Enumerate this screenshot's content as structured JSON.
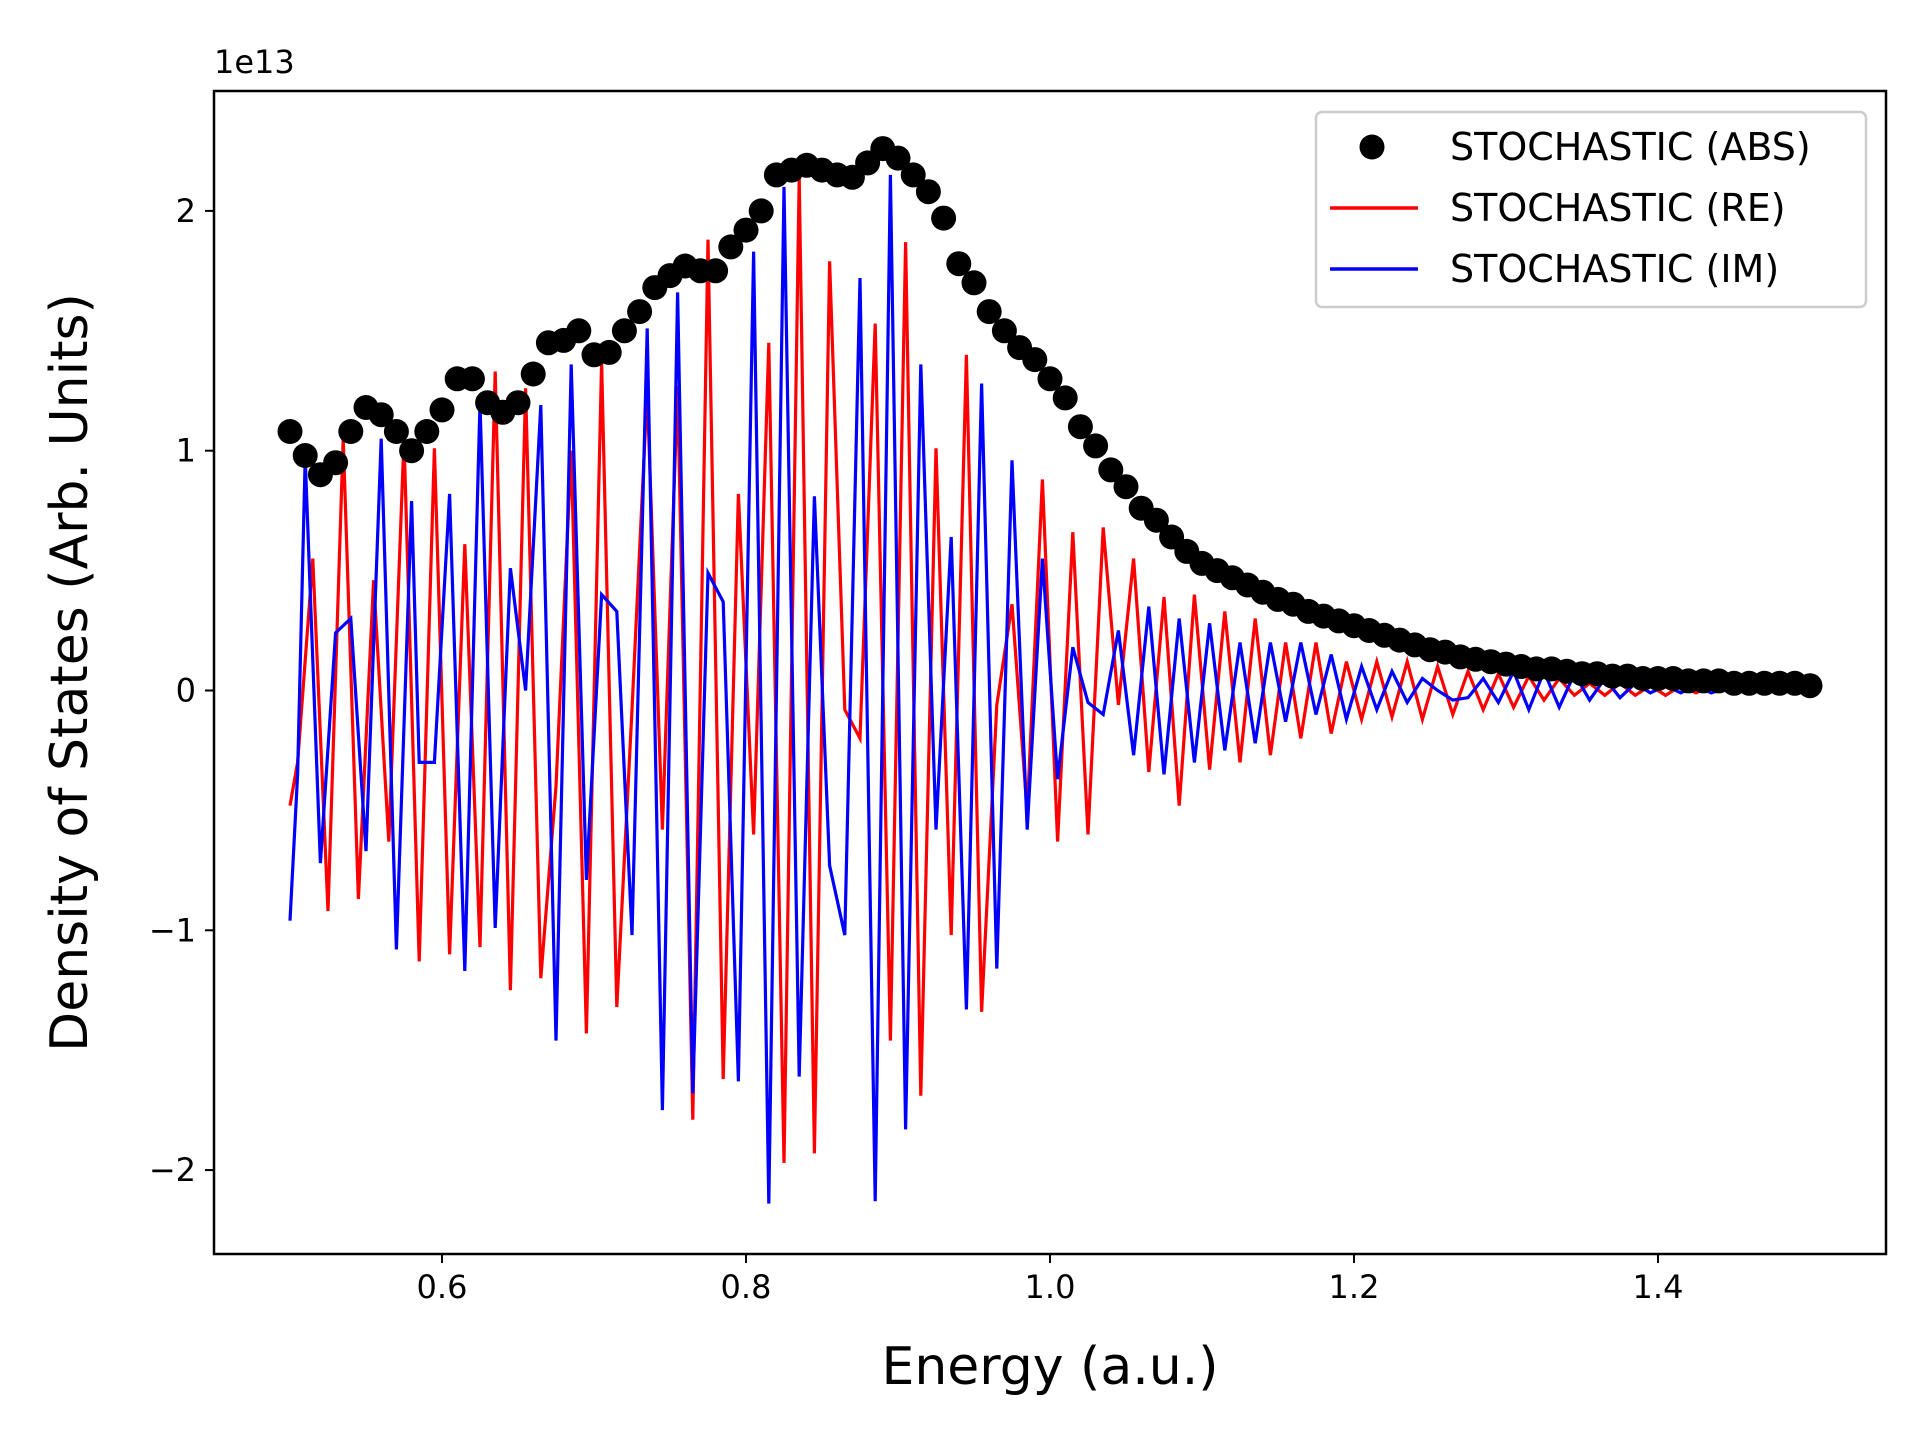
{
  "chart_data": {
    "type": "line",
    "xlabel": "Energy (a.u.)",
    "ylabel": "Density of States (Arb. Units)",
    "offset_label": "1e13",
    "xlim": [
      0.45,
      1.55
    ],
    "ylim": [
      -2.35,
      2.5
    ],
    "xticks": [
      0.6,
      0.8,
      1.0,
      1.2,
      1.4
    ],
    "xtick_labels": [
      "0.6",
      "0.8",
      "1.0",
      "1.2",
      "1.4"
    ],
    "yticks": [
      -2,
      -1,
      0,
      1,
      2
    ],
    "ytick_labels": [
      "−2",
      "−1",
      "0",
      "1",
      "2"
    ],
    "legend_position": "top-right",
    "grid": false,
    "colors": {
      "abs": "#000000",
      "re": "#ff0000",
      "im": "#0000ff"
    },
    "series": [
      {
        "name": "STOCHASTIC (ABS)",
        "style": "markers",
        "color": "#000000",
        "x": [
          0.5,
          0.51,
          0.52,
          0.53,
          0.54,
          0.55,
          0.56,
          0.57,
          0.58,
          0.59,
          0.6,
          0.61,
          0.62,
          0.63,
          0.64,
          0.65,
          0.66,
          0.67,
          0.68,
          0.69,
          0.7,
          0.71,
          0.72,
          0.73,
          0.74,
          0.75,
          0.76,
          0.77,
          0.78,
          0.79,
          0.8,
          0.81,
          0.82,
          0.83,
          0.84,
          0.85,
          0.86,
          0.87,
          0.88,
          0.89,
          0.9,
          0.91,
          0.92,
          0.93,
          0.94,
          0.95,
          0.96,
          0.97,
          0.98,
          0.99,
          1.0,
          1.01,
          1.02,
          1.03,
          1.04,
          1.05,
          1.06,
          1.07,
          1.08,
          1.09,
          1.1,
          1.11,
          1.12,
          1.13,
          1.14,
          1.15,
          1.16,
          1.17,
          1.18,
          1.19,
          1.2,
          1.21,
          1.22,
          1.23,
          1.24,
          1.25,
          1.26,
          1.27,
          1.28,
          1.29,
          1.3,
          1.31,
          1.32,
          1.33,
          1.34,
          1.35,
          1.36,
          1.37,
          1.38,
          1.39,
          1.4,
          1.41,
          1.42,
          1.43,
          1.44,
          1.45,
          1.46,
          1.47,
          1.48,
          1.49,
          1.5
        ],
        "y": [
          1.08,
          0.98,
          0.9,
          0.95,
          1.08,
          1.18,
          1.15,
          1.08,
          1.0,
          1.08,
          1.17,
          1.3,
          1.3,
          1.2,
          1.16,
          1.2,
          1.32,
          1.45,
          1.46,
          1.5,
          1.4,
          1.41,
          1.5,
          1.58,
          1.68,
          1.73,
          1.77,
          1.75,
          1.75,
          1.85,
          1.92,
          2.0,
          2.15,
          2.17,
          2.19,
          2.17,
          2.15,
          2.14,
          2.2,
          2.26,
          2.22,
          2.15,
          2.08,
          1.97,
          1.78,
          1.7,
          1.58,
          1.5,
          1.43,
          1.38,
          1.3,
          1.22,
          1.1,
          1.02,
          0.92,
          0.85,
          0.76,
          0.71,
          0.64,
          0.58,
          0.53,
          0.5,
          0.47,
          0.44,
          0.41,
          0.38,
          0.36,
          0.33,
          0.31,
          0.29,
          0.27,
          0.25,
          0.23,
          0.21,
          0.19,
          0.17,
          0.16,
          0.14,
          0.13,
          0.12,
          0.11,
          0.1,
          0.09,
          0.09,
          0.08,
          0.07,
          0.07,
          0.06,
          0.06,
          0.05,
          0.05,
          0.05,
          0.04,
          0.04,
          0.04,
          0.03,
          0.03,
          0.03,
          0.03,
          0.03,
          0.02
        ]
      },
      {
        "name": "STOCHASTIC (RE)",
        "style": "line",
        "color": "#ff0000",
        "x": [
          0.5,
          0.505,
          0.515,
          0.525,
          0.535,
          0.545,
          0.555,
          0.565,
          0.575,
          0.585,
          0.595,
          0.605,
          0.615,
          0.625,
          0.635,
          0.645,
          0.655,
          0.665,
          0.675,
          0.685,
          0.695,
          0.705,
          0.715,
          0.725,
          0.735,
          0.745,
          0.755,
          0.765,
          0.775,
          0.785,
          0.795,
          0.805,
          0.815,
          0.825,
          0.835,
          0.845,
          0.855,
          0.865,
          0.875,
          0.885,
          0.895,
          0.905,
          0.915,
          0.925,
          0.935,
          0.945,
          0.955,
          0.965,
          0.975,
          0.985,
          0.995,
          1.005,
          1.015,
          1.025,
          1.035,
          1.045,
          1.055,
          1.065,
          1.075,
          1.085,
          1.095,
          1.105,
          1.115,
          1.125,
          1.135,
          1.145,
          1.155,
          1.165,
          1.175,
          1.185,
          1.195,
          1.205,
          1.215,
          1.225,
          1.235,
          1.245,
          1.255,
          1.265,
          1.275,
          1.285,
          1.295,
          1.305,
          1.315,
          1.325,
          1.335,
          1.345,
          1.355,
          1.365,
          1.375,
          1.385,
          1.395,
          1.405,
          1.415,
          1.425,
          1.435,
          1.445,
          1.455,
          1.465,
          1.475,
          1.485,
          1.495,
          1.5
        ],
        "y": [
          -0.48,
          -0.3,
          0.55,
          -0.92,
          1.05,
          -0.87,
          0.46,
          -0.63,
          1.05,
          -1.13,
          1.01,
          -1.1,
          0.61,
          -1.07,
          1.33,
          -1.25,
          1.26,
          -1.2,
          -0.4,
          1.0,
          -1.43,
          1.37,
          -1.32,
          -0.08,
          1.25,
          -0.58,
          1.27,
          -1.79,
          1.88,
          -1.62,
          0.82,
          -0.6,
          1.45,
          -1.97,
          2.14,
          -1.93,
          1.79,
          -0.08,
          -0.2,
          1.53,
          -1.46,
          1.87,
          -1.69,
          1.01,
          -1.02,
          1.4,
          -1.34,
          -0.06,
          0.36,
          -0.51,
          0.88,
          -0.63,
          0.66,
          -0.6,
          0.68,
          -0.06,
          0.55,
          -0.34,
          0.39,
          -0.48,
          0.4,
          -0.33,
          0.33,
          -0.3,
          0.3,
          -0.27,
          0.2,
          -0.2,
          0.2,
          -0.18,
          0.12,
          -0.12,
          0.12,
          -0.11,
          0.12,
          -0.12,
          0.1,
          -0.1,
          0.08,
          -0.08,
          0.07,
          -0.07,
          0.06,
          -0.04,
          0.05,
          -0.02,
          0.03,
          -0.02,
          0.03,
          -0.02,
          0.02,
          -0.02,
          0.02,
          -0.01,
          0.02,
          0.0,
          0.01,
          0.0,
          0.0,
          0.0,
          0.01,
          0.01
        ]
      },
      {
        "name": "STOCHASTIC (IM)",
        "style": "line",
        "color": "#0000ff",
        "x": [
          0.5,
          0.505,
          0.51,
          0.52,
          0.53,
          0.54,
          0.55,
          0.56,
          0.57,
          0.58,
          0.585,
          0.595,
          0.605,
          0.615,
          0.625,
          0.635,
          0.645,
          0.655,
          0.665,
          0.675,
          0.685,
          0.695,
          0.705,
          0.715,
          0.725,
          0.735,
          0.745,
          0.755,
          0.765,
          0.775,
          0.785,
          0.795,
          0.805,
          0.815,
          0.825,
          0.835,
          0.845,
          0.855,
          0.865,
          0.875,
          0.885,
          0.895,
          0.905,
          0.915,
          0.925,
          0.935,
          0.945,
          0.955,
          0.965,
          0.975,
          0.985,
          0.995,
          1.005,
          1.015,
          1.025,
          1.035,
          1.045,
          1.055,
          1.065,
          1.075,
          1.085,
          1.095,
          1.105,
          1.115,
          1.125,
          1.135,
          1.145,
          1.155,
          1.165,
          1.175,
          1.185,
          1.195,
          1.205,
          1.215,
          1.225,
          1.235,
          1.245,
          1.255,
          1.265,
          1.275,
          1.285,
          1.295,
          1.305,
          1.315,
          1.325,
          1.335,
          1.345,
          1.355,
          1.365,
          1.375,
          1.385,
          1.395,
          1.405,
          1.415,
          1.425,
          1.435,
          1.445,
          1.455,
          1.465,
          1.475,
          1.485,
          1.495,
          1.5
        ],
        "y": [
          -0.96,
          -0.35,
          0.97,
          -0.72,
          0.24,
          0.3,
          -0.67,
          1.05,
          -1.08,
          0.79,
          -0.3,
          -0.3,
          0.82,
          -1.17,
          1.2,
          -0.99,
          0.51,
          0.0,
          1.19,
          -1.46,
          1.36,
          -0.79,
          0.4,
          0.33,
          -1.02,
          1.51,
          -1.75,
          1.66,
          -1.68,
          0.49,
          0.37,
          -1.63,
          1.83,
          -2.14,
          2.1,
          -1.61,
          0.81,
          -0.73,
          -1.02,
          1.72,
          -2.13,
          2.15,
          -1.83,
          1.36,
          -0.58,
          0.64,
          -1.33,
          1.28,
          -1.16,
          0.96,
          -0.58,
          0.55,
          -0.37,
          0.18,
          -0.05,
          -0.1,
          0.25,
          -0.27,
          0.35,
          -0.35,
          0.3,
          -0.3,
          0.28,
          -0.25,
          0.2,
          -0.22,
          0.2,
          -0.13,
          0.2,
          -0.1,
          0.15,
          -0.12,
          0.1,
          -0.08,
          0.08,
          -0.05,
          0.05,
          0.0,
          -0.04,
          -0.03,
          0.05,
          -0.05,
          0.08,
          -0.08,
          0.08,
          -0.07,
          0.07,
          -0.04,
          0.05,
          -0.03,
          0.03,
          -0.01,
          0.02,
          -0.01,
          0.02,
          -0.01,
          0.01,
          0.0,
          0.01,
          0.0,
          0.0,
          0.0,
          0.01
        ]
      }
    ]
  }
}
